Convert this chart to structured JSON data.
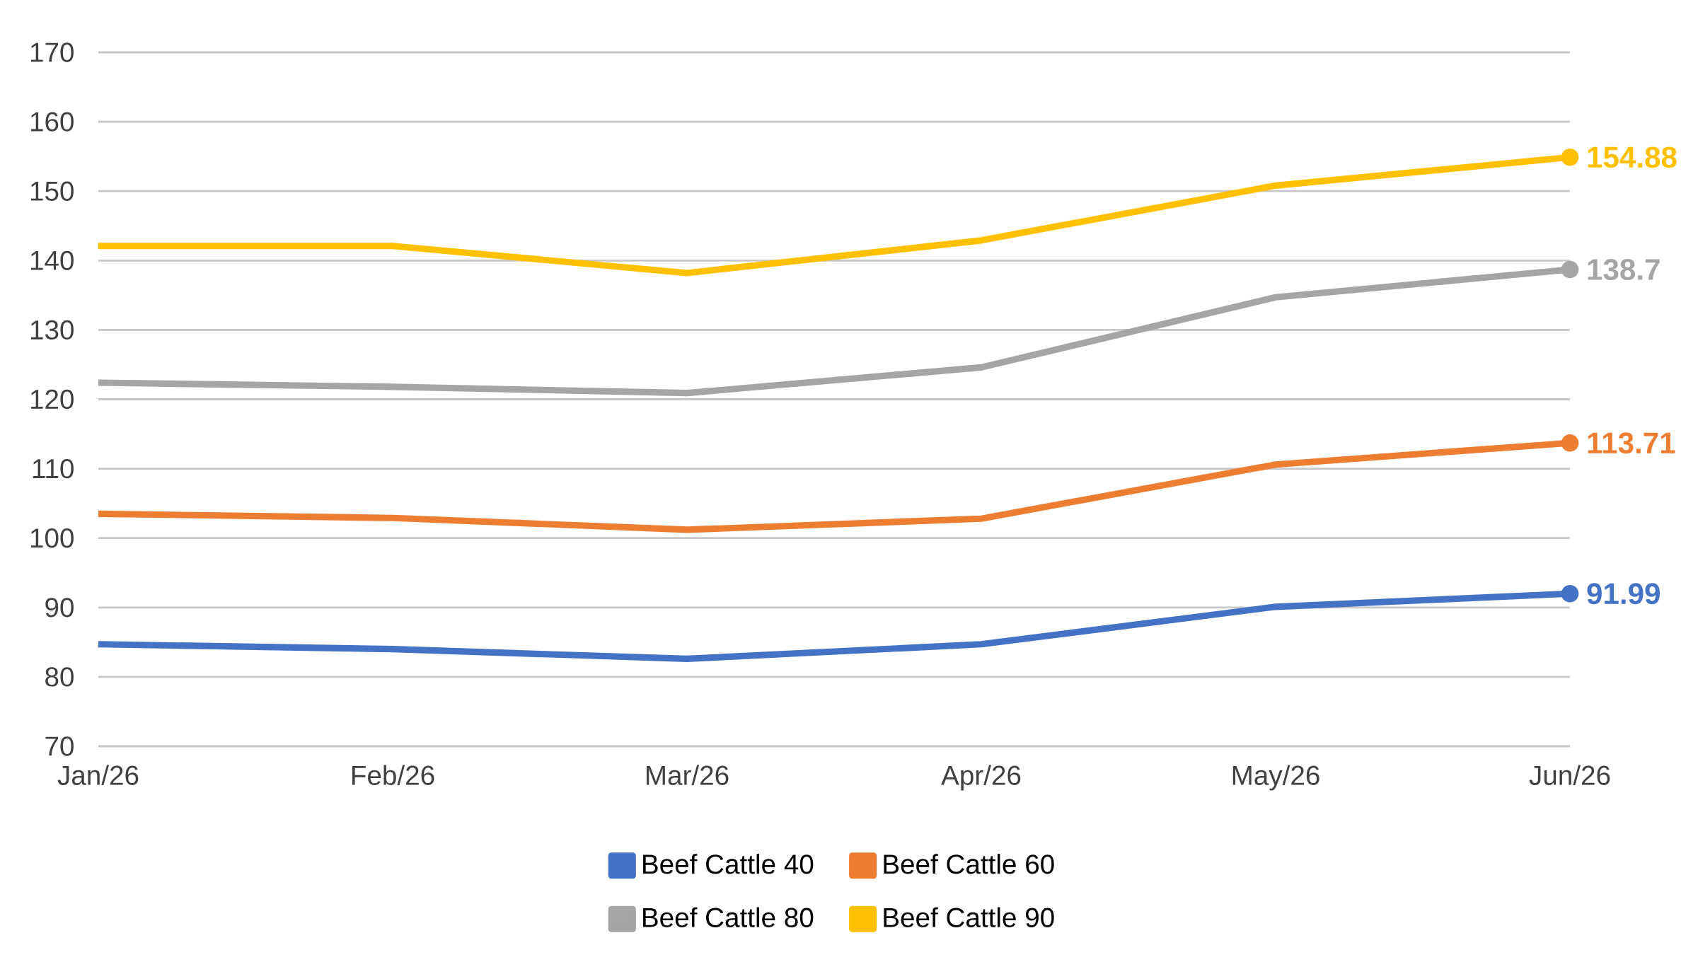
{
  "chart_data": {
    "type": "line",
    "categories": [
      "Jan/26",
      "Feb/26",
      "Mar/26",
      "Apr/26",
      "May/26",
      "Jun/26"
    ],
    "series": [
      {
        "name": "Beef Cattle 40",
        "color": "#4472c4",
        "values": [
          84.7,
          84.0,
          82.6,
          84.7,
          90.1,
          91.99
        ],
        "value_labels": [
          null,
          null,
          null,
          null,
          null,
          "91.99"
        ]
      },
      {
        "name": "Beef Cattle 60",
        "color": "#ed7d31",
        "values": [
          103.5,
          102.9,
          101.2,
          102.8,
          110.6,
          113.71
        ],
        "value_labels": [
          null,
          null,
          null,
          null,
          null,
          "113.71"
        ]
      },
      {
        "name": "Beef Cattle 80",
        "color": "#a5a5a5",
        "values": [
          122.4,
          121.8,
          120.9,
          124.6,
          134.7,
          138.7
        ],
        "value_labels": [
          null,
          null,
          null,
          null,
          null,
          "138.7"
        ]
      },
      {
        "name": "Beef Cattle 90",
        "color": "#ffc000",
        "values": [
          142.1,
          142.1,
          138.2,
          142.9,
          150.8,
          154.88
        ],
        "value_labels": [
          null,
          null,
          null,
          null,
          null,
          "154.88"
        ]
      }
    ],
    "ylim": [
      70,
      170
    ],
    "yticks": [
      70,
      80,
      90,
      100,
      110,
      120,
      130,
      140,
      150,
      160,
      170
    ],
    "grid": "y",
    "legend": "bottom"
  }
}
